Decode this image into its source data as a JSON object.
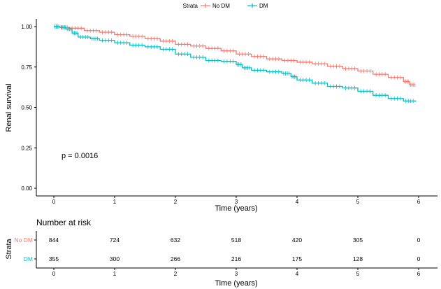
{
  "chart_data": [
    {
      "type": "line",
      "subtype": "kaplan-meier",
      "title": "",
      "legend": {
        "title": "Strata",
        "placement": "top-center"
      },
      "xlabel": "Time (years)",
      "ylabel": "Renal survival",
      "xlim": [
        0,
        6
      ],
      "ylim": [
        0,
        1
      ],
      "x_ticks": [
        "0",
        "1",
        "2",
        "3",
        "4",
        "5",
        "6"
      ],
      "y_ticks": [
        "0.00",
        "0.25",
        "0.50",
        "0.75",
        "1.00"
      ],
      "grid": false,
      "annotation": "p = 0.0016",
      "annotation_pos": {
        "x": 0.45,
        "y": 0.2
      },
      "series": [
        {
          "name": "No DM",
          "color": "#F8766D",
          "points": [
            [
              0,
              1.0
            ],
            [
              0.1,
              0.995
            ],
            [
              0.25,
              0.99
            ],
            [
              0.5,
              0.975
            ],
            [
              0.75,
              0.965
            ],
            [
              1.0,
              0.95
            ],
            [
              1.25,
              0.94
            ],
            [
              1.5,
              0.925
            ],
            [
              1.75,
              0.91
            ],
            [
              2.0,
              0.89
            ],
            [
              2.25,
              0.88
            ],
            [
              2.5,
              0.865
            ],
            [
              2.75,
              0.85
            ],
            [
              3.0,
              0.83
            ],
            [
              3.25,
              0.815
            ],
            [
              3.5,
              0.8
            ],
            [
              3.75,
              0.79
            ],
            [
              4.0,
              0.78
            ],
            [
              4.25,
              0.77
            ],
            [
              4.5,
              0.755
            ],
            [
              4.75,
              0.74
            ],
            [
              5.0,
              0.725
            ],
            [
              5.25,
              0.705
            ],
            [
              5.5,
              0.685
            ],
            [
              5.75,
              0.66
            ],
            [
              5.85,
              0.64
            ],
            [
              5.95,
              0.64
            ]
          ]
        },
        {
          "name": "DM",
          "color": "#00BFC4",
          "points": [
            [
              0,
              1.0
            ],
            [
              0.1,
              0.995
            ],
            [
              0.2,
              0.985
            ],
            [
              0.3,
              0.96
            ],
            [
              0.4,
              0.935
            ],
            [
              0.6,
              0.925
            ],
            [
              0.75,
              0.915
            ],
            [
              1.0,
              0.9
            ],
            [
              1.25,
              0.885
            ],
            [
              1.5,
              0.875
            ],
            [
              1.75,
              0.86
            ],
            [
              2.0,
              0.83
            ],
            [
              2.25,
              0.81
            ],
            [
              2.5,
              0.79
            ],
            [
              2.75,
              0.785
            ],
            [
              3.0,
              0.765
            ],
            [
              3.1,
              0.745
            ],
            [
              3.25,
              0.73
            ],
            [
              3.5,
              0.72
            ],
            [
              3.75,
              0.71
            ],
            [
              3.9,
              0.69
            ],
            [
              4.0,
              0.67
            ],
            [
              4.25,
              0.65
            ],
            [
              4.5,
              0.63
            ],
            [
              4.75,
              0.62
            ],
            [
              5.0,
              0.6
            ],
            [
              5.25,
              0.575
            ],
            [
              5.5,
              0.555
            ],
            [
              5.75,
              0.54
            ],
            [
              5.95,
              0.535
            ]
          ]
        }
      ]
    },
    {
      "type": "table",
      "title": "Number at risk",
      "ylabel": "Strata",
      "xlabel": "Time (years)",
      "x_ticks": [
        "0",
        "1",
        "2",
        "3",
        "4",
        "5",
        "6"
      ],
      "rows": [
        {
          "name": "No DM",
          "color": "#F8766D",
          "values": [
            "844",
            "724",
            "632",
            "518",
            "420",
            "305",
            "0"
          ]
        },
        {
          "name": "DM",
          "color": "#00BFC4",
          "values": [
            "355",
            "300",
            "266",
            "216",
            "175",
            "128",
            "0"
          ]
        }
      ]
    }
  ]
}
